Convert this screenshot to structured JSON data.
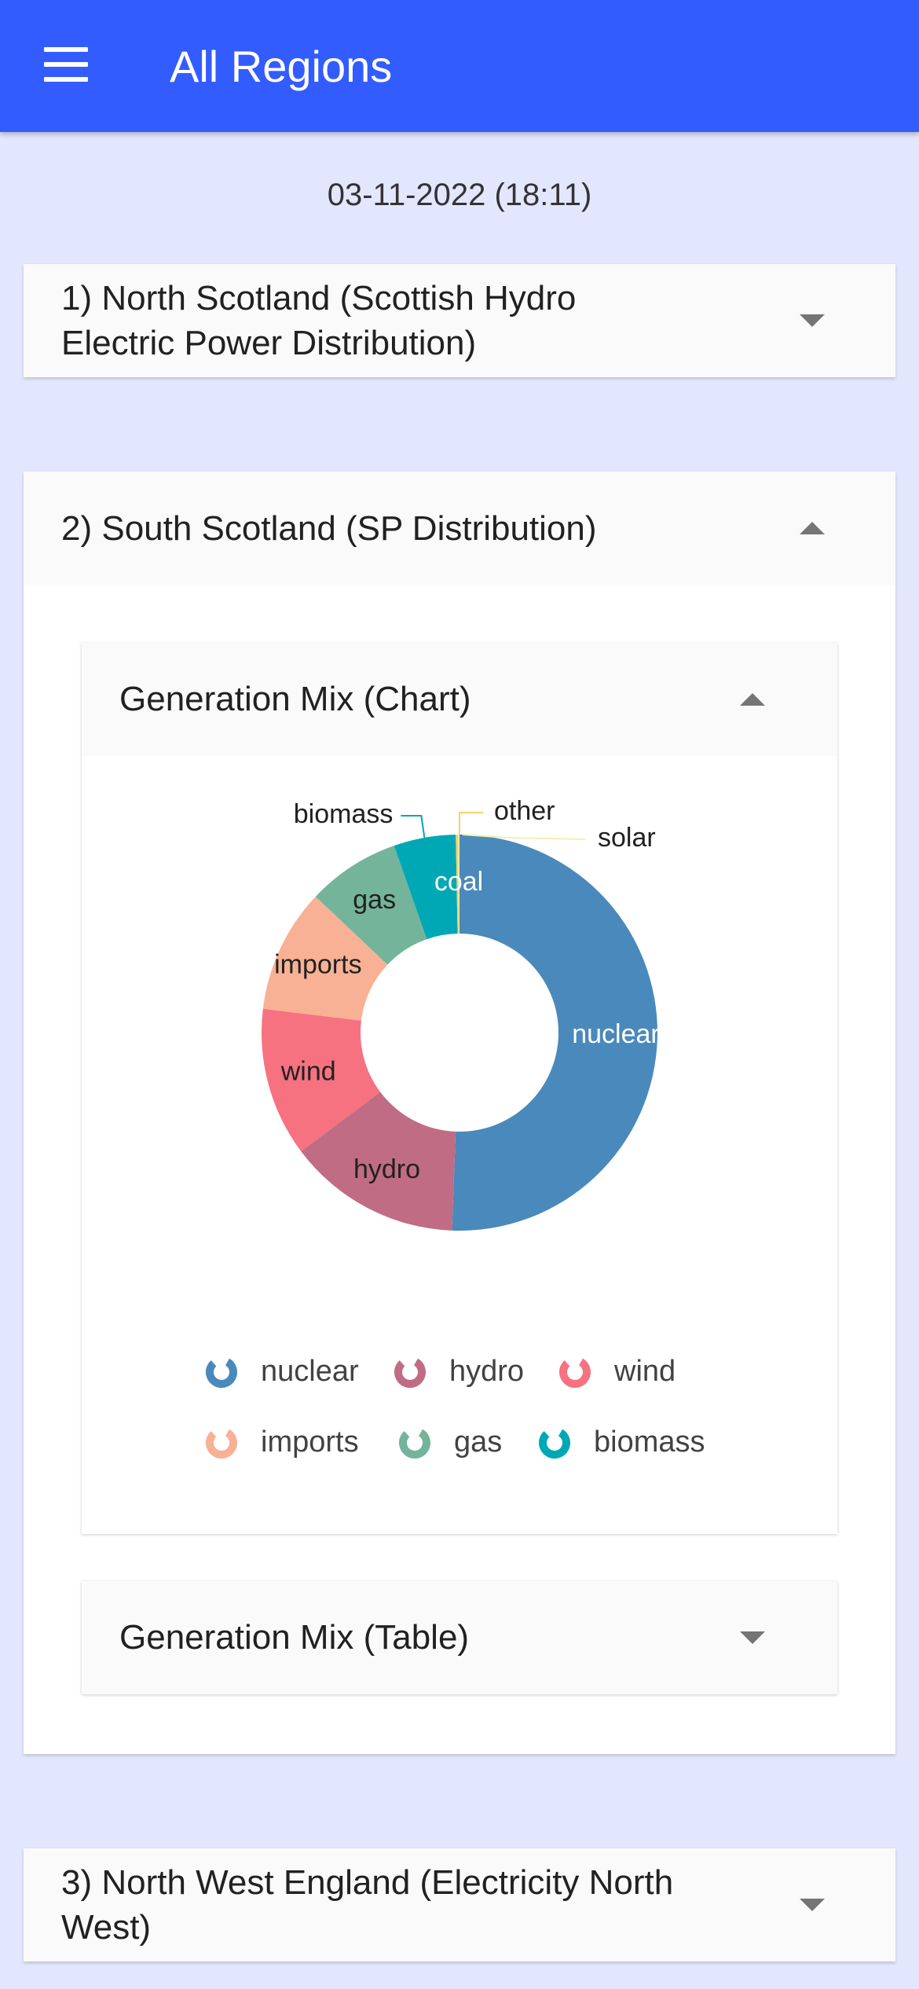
{
  "appbar": {
    "title": "All Regions",
    "menu_icon": "hamburger-menu-icon"
  },
  "timestamp": "03-11-2022 (18:11)",
  "regions": [
    {
      "label_line1": "1) North Scotland (Scottish Hydro",
      "label_line2": "Electric Power Distribution)",
      "expanded": false
    },
    {
      "label": "2) South Scotland (SP Distribution)",
      "expanded": true
    },
    {
      "label_line1": "3) North West England (Electricity North",
      "label_line2": "West)",
      "expanded": false
    }
  ],
  "sections": {
    "chart_label": "Generation Mix (Chart)",
    "table_label": "Generation Mix (Table)"
  },
  "chart_data": {
    "type": "pie",
    "donut": true,
    "categories": [
      "nuclear",
      "hydro",
      "wind",
      "imports",
      "gas",
      "biomass",
      "coal",
      "other",
      "solar"
    ],
    "values": [
      50.0,
      14.0,
      12.0,
      10.0,
      7.5,
      5.0,
      0.0,
      0.2,
      0.1
    ],
    "colors": [
      "#4a89bb",
      "#c06c84",
      "#f67280",
      "#f8b195",
      "#74b49b",
      "#00a8b5",
      "#355c7d",
      "#f7d06a",
      "#f0f0b0"
    ],
    "inside_label_color": [
      "#ffffff",
      "#212121",
      "#212121",
      "#212121",
      "#212121",
      "#ffffff",
      "#ffffff",
      "#212121",
      "#212121"
    ],
    "legend": [
      "nuclear",
      "hydro",
      "wind",
      "imports",
      "gas",
      "biomass"
    ],
    "legend_placement": "bottom"
  }
}
